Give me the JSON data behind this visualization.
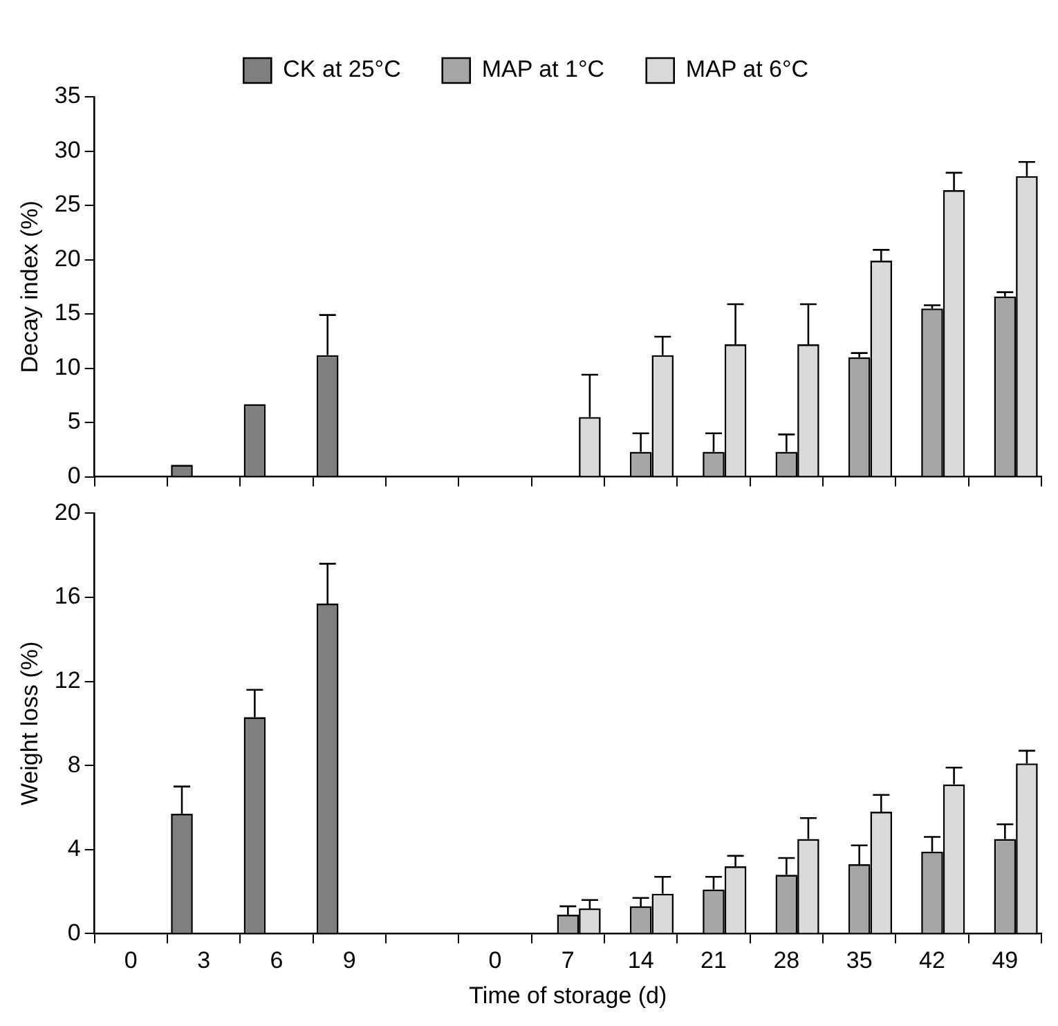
{
  "chart_data": [
    {
      "type": "bar",
      "ylabel": "Decay index (%)",
      "categories": [
        "0",
        "3",
        "6",
        "9",
        null,
        "0",
        "7",
        "14",
        "21",
        "28",
        "35",
        "42",
        "49"
      ],
      "ylim": [
        0,
        35
      ],
      "yticks": [
        0,
        5,
        10,
        15,
        20,
        25,
        30,
        35
      ],
      "legend": "top",
      "tick_labels": "y",
      "series": [
        {
          "name": "CK at 25°C",
          "color": "#7f7f7f",
          "values": [
            null,
            1.1,
            6.7,
            11.2,
            null,
            null,
            null,
            null,
            null,
            null,
            null,
            null,
            null
          ],
          "errors": [
            null,
            null,
            null,
            [
              11.2,
              14.9
            ],
            null,
            null,
            null,
            null,
            null,
            null,
            null,
            null,
            null
          ]
        },
        {
          "name": "MAP at 1°C",
          "color": "#a6a6a6",
          "values": [
            null,
            null,
            null,
            null,
            null,
            null,
            null,
            2.3,
            2.3,
            2.3,
            11.0,
            15.5,
            16.6
          ],
          "errors": [
            null,
            null,
            null,
            null,
            null,
            null,
            null,
            [
              2.3,
              4.0
            ],
            [
              2.3,
              4.0
            ],
            [
              2.3,
              3.9
            ],
            [
              11.0,
              11.4
            ],
            [
              15.5,
              15.8
            ],
            [
              16.6,
              17.0
            ]
          ]
        },
        {
          "name": "MAP at 6°C",
          "color": "#d9d9d9",
          "values": [
            null,
            null,
            null,
            null,
            null,
            null,
            5.5,
            11.2,
            12.2,
            12.2,
            19.9,
            26.4,
            27.7
          ],
          "errors": [
            null,
            null,
            null,
            null,
            null,
            null,
            [
              5.5,
              9.4
            ],
            [
              11.2,
              12.9
            ],
            [
              12.2,
              15.9
            ],
            [
              12.2,
              15.9
            ],
            [
              19.9,
              20.9
            ],
            [
              26.4,
              28.0
            ],
            [
              27.7,
              29.0
            ]
          ]
        }
      ]
    },
    {
      "type": "bar",
      "xlabel": "Time of storage (d)",
      "ylabel": "Weight loss (%)",
      "categories": [
        "0",
        "3",
        "6",
        "9",
        null,
        "0",
        "7",
        "14",
        "21",
        "28",
        "35",
        "42",
        "49"
      ],
      "ylim": [
        0,
        20
      ],
      "yticks": [
        0,
        4,
        8,
        12,
        16,
        20
      ],
      "series": [
        {
          "color": "#7f7f7f",
          "values": [
            null,
            5.7,
            10.3,
            15.7,
            null,
            null,
            null,
            null,
            null,
            null,
            null,
            null,
            null
          ],
          "errors": [
            null,
            [
              5.7,
              7.0
            ],
            [
              10.3,
              11.6
            ],
            [
              15.7,
              17.6
            ],
            null,
            null,
            null,
            null,
            null,
            null,
            null,
            null,
            null
          ]
        },
        {
          "color": "#a6a6a6",
          "values": [
            null,
            null,
            null,
            null,
            null,
            null,
            0.9,
            1.3,
            2.1,
            2.8,
            3.3,
            3.9,
            4.5
          ],
          "errors": [
            null,
            null,
            null,
            null,
            null,
            null,
            [
              0.9,
              1.3
            ],
            [
              1.3,
              1.7
            ],
            [
              2.1,
              2.7
            ],
            [
              2.8,
              3.6
            ],
            [
              3.3,
              4.2
            ],
            [
              3.9,
              4.6
            ],
            [
              4.5,
              5.2
            ]
          ]
        },
        {
          "color": "#d9d9d9",
          "values": [
            null,
            null,
            null,
            null,
            null,
            null,
            1.2,
            1.9,
            3.2,
            4.5,
            5.8,
            7.1,
            8.1
          ],
          "errors": [
            null,
            null,
            null,
            null,
            null,
            null,
            [
              1.2,
              1.6
            ],
            [
              1.9,
              2.7
            ],
            [
              3.2,
              3.7
            ],
            [
              4.5,
              5.5
            ],
            [
              5.8,
              6.6
            ],
            [
              7.1,
              7.9
            ],
            [
              8.1,
              8.7
            ]
          ]
        }
      ]
    }
  ]
}
